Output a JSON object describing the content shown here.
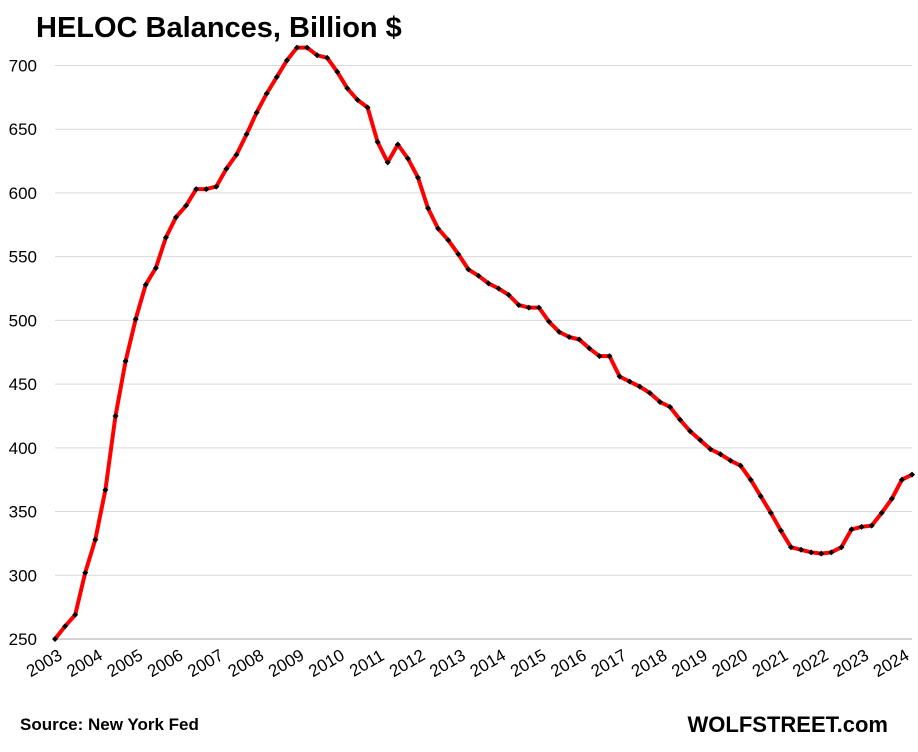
{
  "header": {
    "title": "HELOC Balances, Billion $"
  },
  "footer": {
    "source": "Source: New York Fed",
    "brand": "WOLFSTREET.com"
  },
  "colors": {
    "line": "#ff0000",
    "marker": "#000000",
    "grid": "#d9d9d9",
    "axis": "#a6a6a6"
  },
  "chart_data": {
    "type": "line",
    "title": "HELOC Balances, Billion $",
    "xlabel": "",
    "ylabel": "",
    "ylim": [
      250,
      720
    ],
    "yticks": [
      250,
      300,
      350,
      400,
      450,
      500,
      550,
      600,
      650,
      700
    ],
    "xticks": [
      "2003",
      "2004",
      "2005",
      "2006",
      "2007",
      "2008",
      "2009",
      "2010",
      "2011",
      "2012",
      "2013",
      "2014",
      "2015",
      "2016",
      "2017",
      "2018",
      "2019",
      "2020",
      "2021",
      "2022",
      "2023",
      "2024"
    ],
    "grid": "horizontal",
    "legend": "none",
    "series": [
      {
        "name": "",
        "x": [
          2003.0,
          2003.25,
          2003.5,
          2003.75,
          2004.0,
          2004.25,
          2004.5,
          2004.75,
          2005.0,
          2005.25,
          2005.5,
          2005.75,
          2006.0,
          2006.25,
          2006.5,
          2006.75,
          2007.0,
          2007.25,
          2007.5,
          2007.75,
          2008.0,
          2008.25,
          2008.5,
          2008.75,
          2009.0,
          2009.25,
          2009.5,
          2009.75,
          2010.0,
          2010.25,
          2010.5,
          2010.75,
          2011.0,
          2011.25,
          2011.5,
          2011.75,
          2012.0,
          2012.25,
          2012.5,
          2012.75,
          2013.0,
          2013.25,
          2013.5,
          2013.75,
          2014.0,
          2014.25,
          2014.5,
          2014.75,
          2015.0,
          2015.25,
          2015.5,
          2015.75,
          2016.0,
          2016.25,
          2016.5,
          2016.75,
          2017.0,
          2017.25,
          2017.5,
          2017.75,
          2018.0,
          2018.25,
          2018.5,
          2018.75,
          2019.0,
          2019.25,
          2019.5,
          2019.75,
          2020.0,
          2020.25,
          2020.5,
          2020.75,
          2021.0,
          2021.25,
          2021.5,
          2021.75,
          2022.0,
          2022.25,
          2022.5,
          2022.75,
          2023.0,
          2023.25,
          2023.5,
          2023.75,
          2024.0,
          2024.25
        ],
        "values": [
          250,
          260,
          269,
          302,
          328,
          367,
          425,
          468,
          501,
          528,
          541,
          565,
          581,
          590,
          603,
          603,
          605,
          619,
          630,
          646,
          663,
          678,
          691,
          704,
          714,
          714,
          708,
          706,
          695,
          682,
          673,
          667,
          640,
          624,
          638,
          627,
          612,
          588,
          572,
          563,
          552,
          540,
          535,
          529,
          525,
          520,
          512,
          510,
          510,
          499,
          491,
          487,
          485,
          478,
          472,
          472,
          456,
          452,
          448,
          443,
          436,
          432,
          422,
          413,
          406,
          399,
          395,
          390,
          386,
          375,
          362,
          349,
          335,
          322,
          320,
          318,
          317,
          318,
          322,
          336,
          338,
          339,
          349,
          360,
          375,
          379
        ]
      }
    ]
  }
}
